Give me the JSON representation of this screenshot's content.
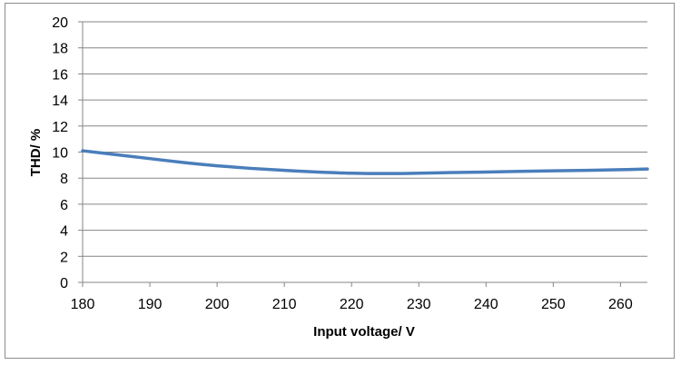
{
  "chart_data": {
    "type": "line",
    "title": "",
    "xlabel": "Input voltage/ V",
    "ylabel": "THD/ %",
    "xlim": [
      180,
      264
    ],
    "ylim": [
      0,
      20
    ],
    "x_ticks": [
      180,
      190,
      200,
      210,
      220,
      230,
      240,
      250,
      260
    ],
    "y_ticks": [
      0,
      2,
      4,
      6,
      8,
      10,
      12,
      14,
      16,
      18,
      20
    ],
    "grid": "horizontal",
    "legend": "none",
    "series": [
      {
        "color": "#4a7ebb",
        "x": [
          180,
          185,
          190,
          195,
          200,
          205,
          210,
          215,
          220,
          225,
          230,
          235,
          240,
          245,
          250,
          255,
          260,
          264
        ],
        "y": [
          10.1,
          9.8,
          9.5,
          9.2,
          8.95,
          8.75,
          8.6,
          8.47,
          8.38,
          8.35,
          8.38,
          8.43,
          8.47,
          8.52,
          8.56,
          8.6,
          8.65,
          8.7
        ]
      }
    ]
  }
}
